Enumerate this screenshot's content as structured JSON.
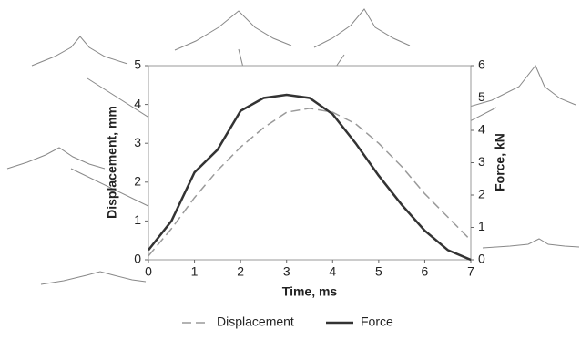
{
  "chart_data": {
    "type": "line",
    "x_label": "Time, ms",
    "y_label": "Displacement, mm",
    "y2_label": "Force, kN",
    "x": [
      0,
      0.5,
      1,
      1.5,
      2,
      2.5,
      3,
      3.5,
      4,
      4.5,
      5,
      5.5,
      6,
      6.5,
      7
    ],
    "series": [
      {
        "name": "Displacement",
        "color": "#9a9a9a",
        "dash": true,
        "axis": "y",
        "values": [
          0.1,
          0.8,
          1.6,
          2.3,
          2.9,
          3.4,
          3.8,
          3.9,
          3.8,
          3.5,
          3.0,
          2.4,
          1.7,
          1.1,
          0.5
        ]
      },
      {
        "name": "Force",
        "color": "#333333",
        "dash": false,
        "axis": "y2",
        "values": [
          0.3,
          1.2,
          2.7,
          3.4,
          4.6,
          5.0,
          5.1,
          5.0,
          4.5,
          3.6,
          2.6,
          1.7,
          0.9,
          0.3,
          0
        ]
      }
    ],
    "xlim": [
      0,
      7
    ],
    "xticks": [
      0,
      1,
      2,
      3,
      4,
      5,
      6,
      7
    ],
    "ylim": [
      0,
      5
    ],
    "yticks": [
      0,
      1,
      2,
      3,
      4,
      5
    ],
    "y2lim": [
      0,
      6
    ],
    "y2ticks": [
      0,
      1,
      2,
      3,
      4,
      5,
      6
    ],
    "legend": "bottom"
  }
}
